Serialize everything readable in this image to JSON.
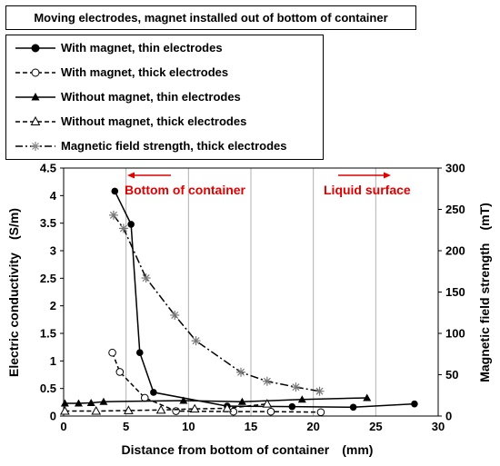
{
  "chart_data": {
    "type": "line",
    "title": "Moving electrodes, magnet installed out of bottom of container",
    "xlabel": "Distance from bottom of container　(mm)",
    "ylabel_left": "Electric conductivity　(S/m)",
    "ylabel_right": "Magnetic field strength　(mT)",
    "xlim": [
      0,
      30
    ],
    "xticks": [
      "0",
      "5",
      "10",
      "15",
      "20",
      "25",
      "30"
    ],
    "ylim_left": [
      0,
      4.5
    ],
    "yticks_left": [
      "0",
      "0.5",
      "1",
      "1.5",
      "2",
      "2.5",
      "3",
      "3.5",
      "4",
      "4.5"
    ],
    "ylim_right": [
      0,
      300
    ],
    "yticks_right": [
      "0",
      "50",
      "100",
      "150",
      "200",
      "250",
      "300"
    ],
    "grid": "vertical",
    "legend_position": "top-left",
    "annotations": [
      {
        "text": "Bottom of container",
        "color": "#e00000",
        "arrow": "left"
      },
      {
        "text": "Liquid surface",
        "color": "#e00000",
        "arrow": "right"
      }
    ],
    "series": [
      {
        "name": "With magnet, thin electrodes",
        "axis": "left",
        "marker": "filled-circle",
        "line": "solid",
        "x": [
          4.1,
          5.4,
          6.1,
          7.2,
          13.1,
          18.3,
          23.2,
          28.1
        ],
        "y": [
          4.08,
          3.48,
          1.15,
          0.43,
          0.18,
          0.17,
          0.16,
          0.22
        ]
      },
      {
        "name": "With magnet, thick electrodes",
        "axis": "left",
        "marker": "open-circle",
        "line": "dashed",
        "x": [
          3.9,
          4.5,
          6.5,
          9.0,
          13.6,
          16.6,
          20.6
        ],
        "y": [
          1.15,
          0.8,
          0.33,
          0.09,
          0.08,
          0.08,
          0.07
        ]
      },
      {
        "name": "Without magnet, thin electrodes",
        "axis": "left",
        "marker": "filled-triangle",
        "line": "solid",
        "x": [
          0.1,
          1.2,
          2.2,
          3.2,
          9.6,
          14.3,
          19.1,
          24.3
        ],
        "y": [
          0.23,
          0.23,
          0.24,
          0.26,
          0.28,
          0.26,
          0.3,
          0.33
        ]
      },
      {
        "name": "Without magnet, thick electrodes",
        "axis": "left",
        "marker": "open-triangle",
        "line": "dashed",
        "x": [
          0.1,
          2.6,
          5.2,
          7.8,
          10.5,
          13.1,
          16.3
        ],
        "y": [
          0.09,
          0.09,
          0.1,
          0.11,
          0.13,
          0.14,
          0.22
        ]
      },
      {
        "name": "Magnetic field strength, thick electrodes",
        "axis": "right",
        "marker": "asterisk",
        "line": "dashdot",
        "x": [
          4.0,
          4.8,
          6.6,
          8.9,
          10.6,
          14.2,
          16.3,
          18.6,
          20.5
        ],
        "y": [
          243,
          227,
          167,
          122,
          91,
          53,
          42,
          35,
          30
        ]
      }
    ]
  }
}
